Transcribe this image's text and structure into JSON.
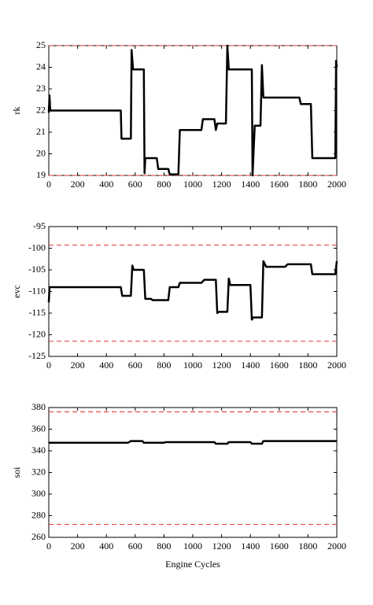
{
  "chart_data": [
    {
      "type": "line",
      "ylabel": "rk",
      "xlim": [
        0,
        2000
      ],
      "xticks": [
        0,
        200,
        400,
        600,
        800,
        1000,
        1200,
        1400,
        1600,
        1800,
        2000
      ],
      "ylim": [
        19,
        25
      ],
      "yticks": [
        19,
        20,
        21,
        22,
        23,
        24,
        25
      ],
      "hlines": {
        "values": [
          25,
          19
        ],
        "color": "#e03030",
        "dash": true
      },
      "series": [
        {
          "color": "#000000",
          "x": [
            0,
            5,
            10,
            500,
            505,
            570,
            575,
            585,
            660,
            665,
            670,
            750,
            760,
            830,
            840,
            900,
            910,
            1060,
            1070,
            1150,
            1160,
            1170,
            1230,
            1240,
            1250,
            1410,
            1415,
            1430,
            1470,
            1480,
            1490,
            1740,
            1750,
            1820,
            1830,
            1990,
            1995,
            2000
          ],
          "values": [
            21.9,
            22.7,
            22,
            22,
            20.7,
            20.7,
            24.8,
            23.9,
            23.9,
            19.1,
            19.8,
            19.8,
            19.3,
            19.3,
            19.05,
            19.05,
            21.1,
            21.1,
            21.6,
            21.6,
            21.1,
            21.4,
            21.4,
            25,
            23.9,
            23.9,
            19,
            21.3,
            21.3,
            24.1,
            22.6,
            22.6,
            22.3,
            22.3,
            19.8,
            19.8,
            24.3,
            24
          ]
        }
      ]
    },
    {
      "type": "line",
      "ylabel": "evc",
      "xlim": [
        0,
        2000
      ],
      "xticks": [
        0,
        200,
        400,
        600,
        800,
        1000,
        1200,
        1400,
        1600,
        1800,
        2000
      ],
      "ylim": [
        -125,
        -95
      ],
      "yticks": [
        -125,
        -120,
        -115,
        -110,
        -105,
        -100,
        -95
      ],
      "hlines": {
        "values": [
          -99.3,
          -121.5
        ],
        "color": "#e03030",
        "dash": true
      },
      "series": [
        {
          "color": "#000000",
          "x": [
            0,
            5,
            500,
            510,
            570,
            580,
            590,
            660,
            670,
            710,
            720,
            830,
            840,
            900,
            910,
            1060,
            1080,
            1160,
            1170,
            1180,
            1240,
            1250,
            1260,
            1400,
            1410,
            1420,
            1480,
            1490,
            1510,
            1640,
            1660,
            1820,
            1830,
            1990,
            2000
          ],
          "values": [
            -112.5,
            -109,
            -109,
            -111,
            -111,
            -104,
            -105,
            -105,
            -111.7,
            -111.7,
            -112,
            -112,
            -109,
            -109,
            -108,
            -108,
            -107.3,
            -107.3,
            -115,
            -114.7,
            -114.7,
            -107,
            -108.5,
            -108.5,
            -116.5,
            -116,
            -116,
            -103,
            -104.3,
            -104.3,
            -103.7,
            -103.7,
            -106,
            -106,
            -103
          ]
        }
      ]
    },
    {
      "type": "line",
      "ylabel": "soi",
      "xlabel": "Engine Cycles",
      "xlim": [
        0,
        2000
      ],
      "xticks": [
        0,
        200,
        400,
        600,
        800,
        1000,
        1200,
        1400,
        1600,
        1800,
        2000
      ],
      "ylim": [
        260,
        380
      ],
      "yticks": [
        260,
        280,
        300,
        320,
        340,
        360,
        380
      ],
      "hlines": {
        "values": [
          376,
          272
        ],
        "color": "#e03030",
        "dash": true
      },
      "series": [
        {
          "color": "#000000",
          "x": [
            0,
            550,
            570,
            650,
            660,
            800,
            810,
            1150,
            1160,
            1240,
            1250,
            1400,
            1410,
            1480,
            1490,
            2000
          ],
          "values": [
            347.5,
            347.5,
            349,
            349,
            347.5,
            347.5,
            348,
            348,
            346.5,
            346.5,
            348,
            348,
            346.5,
            346.5,
            349,
            349
          ]
        }
      ]
    }
  ]
}
